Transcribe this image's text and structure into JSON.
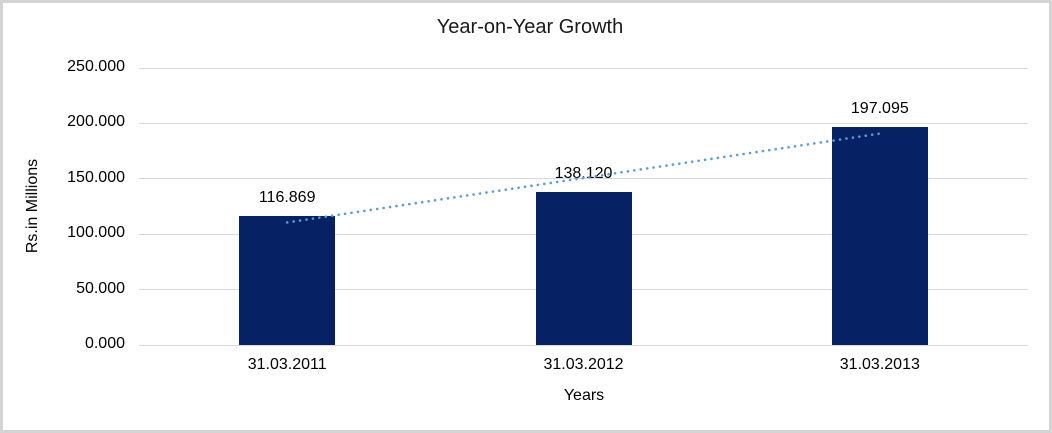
{
  "chart_data": {
    "type": "bar",
    "title": "Year-on-Year Growth",
    "xlabel": "Years",
    "ylabel": "Rs.in Millions",
    "categories": [
      "31.03.2011",
      "31.03.2012",
      "31.03.2013"
    ],
    "values": [
      116.869,
      138.12,
      197.095
    ],
    "value_labels": [
      "116.869",
      "138.120",
      "197.095"
    ],
    "ylim": [
      0,
      250
    ],
    "ytick_step": 50,
    "ytick_labels": [
      "0.000",
      "50.000",
      "100.000",
      "150.000",
      "200.000",
      "250.000"
    ],
    "grid": true,
    "legend": false,
    "trend": {
      "type": "linear",
      "style": "dotted"
    },
    "colors": {
      "bar": "#062264",
      "trendline": "#5b9bd5",
      "gridline": "#d9d9d9",
      "axis_text": "#000000",
      "title_text": "#1a1a1a",
      "frame_border": "#d4d4d4",
      "background": "#ffffff"
    }
  }
}
